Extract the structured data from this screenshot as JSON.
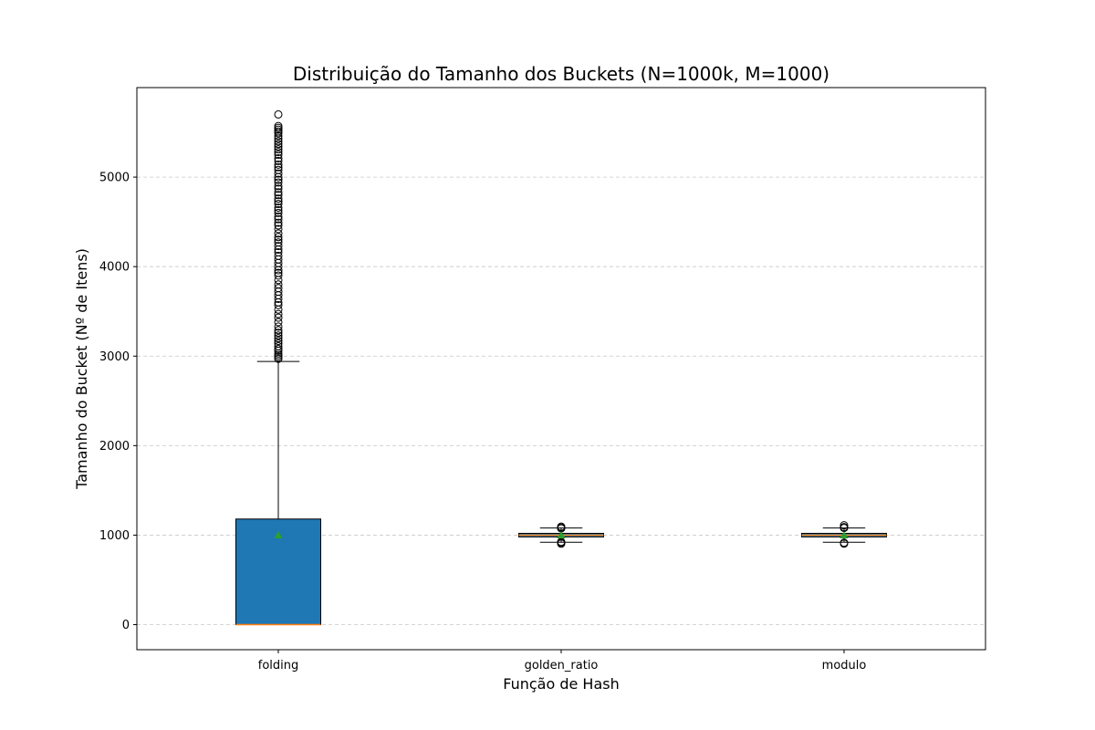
{
  "chart_data": {
    "type": "box",
    "title": "Distribuição do Tamanho dos Buckets (N=1000k, M=1000)",
    "xlabel": "Função de Hash",
    "ylabel": "Tamanho do Bucket (Nº de Itens)",
    "ylim": [
      -280,
      6000
    ],
    "yticks": [
      0,
      1000,
      2000,
      3000,
      4000,
      5000
    ],
    "grid": "y",
    "box_color": "#1f77b4",
    "median_color": "#ff7f0e",
    "mean_color": "#2ca02c",
    "boxes": [
      {
        "name": "folding",
        "q1": 0,
        "median": 0,
        "q3": 1180,
        "whisker_low": 0,
        "whisker_high": 2940,
        "mean": 1000,
        "outliers": [
          2970,
          2990,
          3010,
          3030,
          3060,
          3080,
          3110,
          3140,
          3170,
          3200,
          3230,
          3260,
          3290,
          3330,
          3380,
          3430,
          3470,
          3520,
          3570,
          3600,
          3640,
          3680,
          3720,
          3760,
          3800,
          3850,
          3900,
          3930,
          3960,
          4000,
          4040,
          4080,
          4120,
          4160,
          4190,
          4230,
          4270,
          4300,
          4330,
          4370,
          4420,
          4460,
          4490,
          4530,
          4560,
          4600,
          4630,
          4660,
          4700,
          4730,
          4760,
          4800,
          4830,
          4870,
          4900,
          4940,
          4970,
          5000,
          5040,
          5080,
          5110,
          5140,
          5180,
          5210,
          5250,
          5280,
          5310,
          5340,
          5370,
          5400,
          5430,
          5460,
          5490,
          5510,
          5530,
          5550,
          5570,
          5700
        ]
      },
      {
        "name": "golden_ratio",
        "q1": 980,
        "median": 1000,
        "q3": 1020,
        "whisker_low": 920,
        "whisker_high": 1080,
        "mean": 1000,
        "outliers": [
          905,
          915,
          925,
          1075,
          1085,
          1095
        ]
      },
      {
        "name": "modulo",
        "q1": 980,
        "median": 1000,
        "q3": 1020,
        "whisker_low": 920,
        "whisker_high": 1080,
        "mean": 1000,
        "outliers": [
          905,
          915,
          1080,
          1090,
          1110
        ]
      }
    ]
  }
}
